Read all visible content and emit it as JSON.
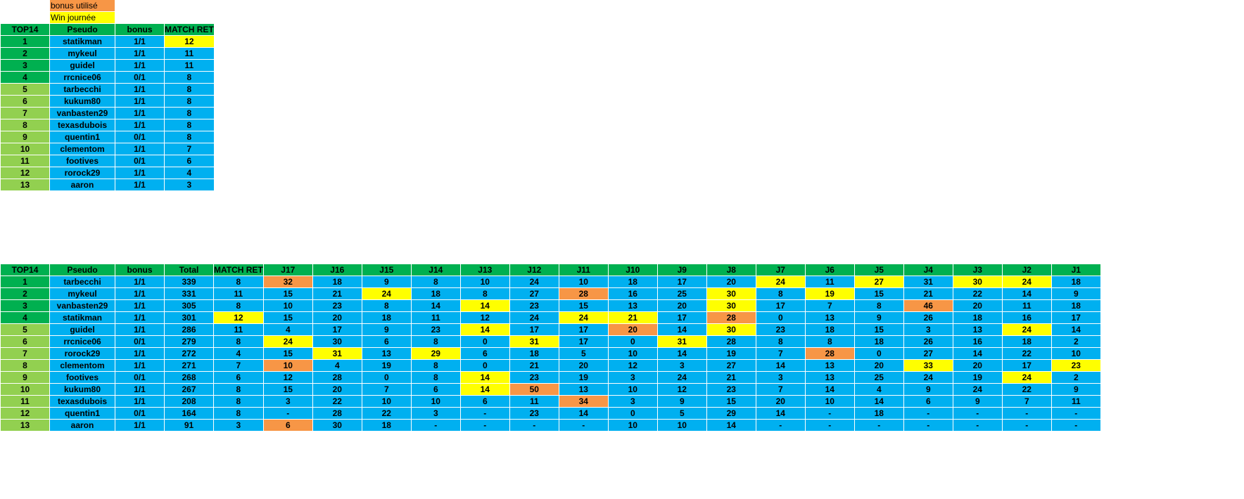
{
  "legend": {
    "bonus_label": "bonus utilisé",
    "win_label": "Win journée",
    "bonus_color": "#f79646",
    "win_color": "#ffff00"
  },
  "colors": {
    "header": "#00b050",
    "rank_top": "#00b050",
    "rank_rest": "#92d050",
    "cell": "#00b0f0"
  },
  "table1": {
    "headers": [
      "TOP14",
      "Pseudo",
      "bonus",
      "MATCH RET"
    ],
    "rows": [
      {
        "rank": "1",
        "pseudo": "statikman",
        "bonus": "1/1",
        "match_ret": "12",
        "match_state": "win",
        "top": true
      },
      {
        "rank": "2",
        "pseudo": "mykeul",
        "bonus": "1/1",
        "match_ret": "11",
        "match_state": "",
        "top": true
      },
      {
        "rank": "3",
        "pseudo": "guidel",
        "bonus": "1/1",
        "match_ret": "11",
        "match_state": "",
        "top": true
      },
      {
        "rank": "4",
        "pseudo": "rrcnice06",
        "bonus": "0/1",
        "match_ret": "8",
        "match_state": "",
        "top": true
      },
      {
        "rank": "5",
        "pseudo": "tarbecchi",
        "bonus": "1/1",
        "match_ret": "8",
        "match_state": "",
        "top": false
      },
      {
        "rank": "6",
        "pseudo": "kukum80",
        "bonus": "1/1",
        "match_ret": "8",
        "match_state": "",
        "top": false
      },
      {
        "rank": "7",
        "pseudo": "vanbasten29",
        "bonus": "1/1",
        "match_ret": "8",
        "match_state": "",
        "top": false
      },
      {
        "rank": "8",
        "pseudo": "texasdubois",
        "bonus": "1/1",
        "match_ret": "8",
        "match_state": "",
        "top": false
      },
      {
        "rank": "9",
        "pseudo": "quentin1",
        "bonus": "0/1",
        "match_ret": "8",
        "match_state": "",
        "top": false
      },
      {
        "rank": "10",
        "pseudo": "clementom",
        "bonus": "1/1",
        "match_ret": "7",
        "match_state": "",
        "top": false
      },
      {
        "rank": "11",
        "pseudo": "footives",
        "bonus": "0/1",
        "match_ret": "6",
        "match_state": "",
        "top": false
      },
      {
        "rank": "12",
        "pseudo": "rorock29",
        "bonus": "1/1",
        "match_ret": "4",
        "match_state": "",
        "top": false
      },
      {
        "rank": "13",
        "pseudo": "aaron",
        "bonus": "1/1",
        "match_ret": "3",
        "match_state": "",
        "top": false
      }
    ]
  },
  "table2": {
    "headers": [
      "TOP14",
      "Pseudo",
      "bonus",
      "Total",
      "MATCH RET",
      "J17",
      "J16",
      "J15",
      "J14",
      "J13",
      "J12",
      "J11",
      "J10",
      "J9",
      "J8",
      "J7",
      "J6",
      "J5",
      "J4",
      "J3",
      "J2",
      "J1"
    ],
    "rows": [
      {
        "rank": "1",
        "pseudo": "tarbecchi",
        "bonus": "1/1",
        "total": "339",
        "match_ret": "8",
        "match_state": "",
        "top": true,
        "days": [
          "32",
          "18",
          "9",
          "8",
          "10",
          "24",
          "10",
          "18",
          "17",
          "20",
          "24",
          "11",
          "27",
          "31",
          "30",
          "24",
          "18"
        ],
        "states": [
          "bonus",
          "",
          "",
          "",
          "",
          "",
          "",
          "",
          "",
          "",
          "win",
          "",
          "win",
          "",
          "win",
          "win",
          ""
        ]
      },
      {
        "rank": "2",
        "pseudo": "mykeul",
        "bonus": "1/1",
        "total": "331",
        "match_ret": "11",
        "match_state": "",
        "top": true,
        "days": [
          "15",
          "21",
          "24",
          "18",
          "8",
          "27",
          "28",
          "16",
          "25",
          "30",
          "8",
          "19",
          "15",
          "21",
          "22",
          "14",
          "9"
        ],
        "states": [
          "",
          "",
          "win",
          "",
          "",
          "",
          "bonus",
          "",
          "",
          "win",
          "",
          "win",
          "",
          "",
          "",
          "",
          ""
        ]
      },
      {
        "rank": "3",
        "pseudo": "vanbasten29",
        "bonus": "1/1",
        "total": "305",
        "match_ret": "8",
        "match_state": "",
        "top": true,
        "days": [
          "10",
          "23",
          "8",
          "14",
          "14",
          "23",
          "15",
          "13",
          "20",
          "30",
          "17",
          "7",
          "8",
          "46",
          "20",
          "11",
          "18"
        ],
        "states": [
          "",
          "",
          "",
          "",
          "win",
          "",
          "",
          "",
          "",
          "win",
          "",
          "",
          "",
          "bonus",
          "",
          "",
          ""
        ]
      },
      {
        "rank": "4",
        "pseudo": "statikman",
        "bonus": "1/1",
        "total": "301",
        "match_ret": "12",
        "match_state": "win",
        "top": true,
        "days": [
          "15",
          "20",
          "18",
          "11",
          "12",
          "24",
          "24",
          "21",
          "17",
          "28",
          "0",
          "13",
          "9",
          "26",
          "18",
          "16",
          "17"
        ],
        "states": [
          "",
          "",
          "",
          "",
          "",
          "",
          "win",
          "win",
          "",
          "bonus",
          "",
          "",
          "",
          "",
          "",
          "",
          ""
        ]
      },
      {
        "rank": "5",
        "pseudo": "guidel",
        "bonus": "1/1",
        "total": "286",
        "match_ret": "11",
        "match_state": "",
        "top": false,
        "days": [
          "4",
          "17",
          "9",
          "23",
          "14",
          "17",
          "17",
          "20",
          "14",
          "30",
          "23",
          "18",
          "15",
          "3",
          "13",
          "24",
          "14"
        ],
        "states": [
          "",
          "",
          "",
          "",
          "win",
          "",
          "",
          "bonus",
          "",
          "win",
          "",
          "",
          "",
          "",
          "",
          "win",
          ""
        ]
      },
      {
        "rank": "6",
        "pseudo": "rrcnice06",
        "bonus": "0/1",
        "total": "279",
        "match_ret": "8",
        "match_state": "",
        "top": false,
        "days": [
          "24",
          "30",
          "6",
          "8",
          "0",
          "31",
          "17",
          "0",
          "31",
          "28",
          "8",
          "8",
          "18",
          "26",
          "16",
          "18",
          "2"
        ],
        "states": [
          "win",
          "",
          "",
          "",
          "",
          "win",
          "",
          "",
          "win",
          "",
          "",
          "",
          "",
          "",
          "",
          "",
          ""
        ]
      },
      {
        "rank": "7",
        "pseudo": "rorock29",
        "bonus": "1/1",
        "total": "272",
        "match_ret": "4",
        "match_state": "",
        "top": false,
        "days": [
          "15",
          "31",
          "13",
          "29",
          "6",
          "18",
          "5",
          "10",
          "14",
          "19",
          "7",
          "28",
          "0",
          "27",
          "14",
          "22",
          "10"
        ],
        "states": [
          "",
          "win",
          "",
          "win",
          "",
          "",
          "",
          "",
          "",
          "",
          "",
          "bonus",
          "",
          "",
          "",
          "",
          ""
        ]
      },
      {
        "rank": "8",
        "pseudo": "clementom",
        "bonus": "1/1",
        "total": "271",
        "match_ret": "7",
        "match_state": "",
        "top": false,
        "days": [
          "10",
          "4",
          "19",
          "8",
          "0",
          "21",
          "20",
          "12",
          "3",
          "27",
          "14",
          "13",
          "20",
          "33",
          "20",
          "17",
          "23"
        ],
        "states": [
          "bonus",
          "",
          "",
          "",
          "",
          "",
          "",
          "",
          "",
          "",
          "",
          "",
          "",
          "win",
          "",
          "",
          "win"
        ]
      },
      {
        "rank": "9",
        "pseudo": "footives",
        "bonus": "0/1",
        "total": "268",
        "match_ret": "6",
        "match_state": "",
        "top": false,
        "days": [
          "12",
          "28",
          "0",
          "8",
          "14",
          "23",
          "19",
          "3",
          "24",
          "21",
          "3",
          "13",
          "25",
          "24",
          "19",
          "24",
          "2"
        ],
        "states": [
          "",
          "",
          "",
          "",
          "win",
          "",
          "",
          "",
          "",
          "",
          "",
          "",
          "",
          "",
          "",
          "win",
          ""
        ]
      },
      {
        "rank": "10",
        "pseudo": "kukum80",
        "bonus": "1/1",
        "total": "267",
        "match_ret": "8",
        "match_state": "",
        "top": false,
        "days": [
          "15",
          "20",
          "7",
          "6",
          "14",
          "50",
          "13",
          "10",
          "12",
          "23",
          "7",
          "14",
          "4",
          "9",
          "24",
          "22",
          "9"
        ],
        "states": [
          "",
          "",
          "",
          "",
          "win",
          "bonus",
          "",
          "",
          "",
          "",
          "",
          "",
          "",
          "",
          "",
          "",
          ""
        ]
      },
      {
        "rank": "11",
        "pseudo": "texasdubois",
        "bonus": "1/1",
        "total": "208",
        "match_ret": "8",
        "match_state": "",
        "top": false,
        "days": [
          "3",
          "22",
          "10",
          "10",
          "6",
          "11",
          "34",
          "3",
          "9",
          "15",
          "20",
          "10",
          "14",
          "6",
          "9",
          "7",
          "11"
        ],
        "states": [
          "",
          "",
          "",
          "",
          "",
          "",
          "bonus",
          "",
          "",
          "",
          "",
          "",
          "",
          "",
          "",
          "",
          ""
        ]
      },
      {
        "rank": "12",
        "pseudo": "quentin1",
        "bonus": "0/1",
        "total": "164",
        "match_ret": "8",
        "match_state": "",
        "top": false,
        "days": [
          "-",
          "28",
          "22",
          "3",
          "-",
          "23",
          "14",
          "0",
          "5",
          "29",
          "14",
          "-",
          "18",
          "-",
          "-",
          "-",
          "-"
        ],
        "states": [
          "",
          "",
          "",
          "",
          "",
          "",
          "",
          "",
          "",
          "",
          "",
          "",
          "",
          "",
          "",
          "",
          ""
        ]
      },
      {
        "rank": "13",
        "pseudo": "aaron",
        "bonus": "1/1",
        "total": "91",
        "match_ret": "3",
        "match_state": "",
        "top": false,
        "days": [
          "6",
          "30",
          "18",
          "-",
          "-",
          "-",
          "-",
          "10",
          "10",
          "14",
          "-",
          "-",
          "-",
          "-",
          "-",
          "-",
          "-"
        ],
        "states": [
          "bonus",
          "",
          "",
          "",
          "",
          "",
          "",
          "",
          "",
          "",
          "",
          "",
          "",
          "",
          "",
          "",
          ""
        ]
      }
    ]
  }
}
